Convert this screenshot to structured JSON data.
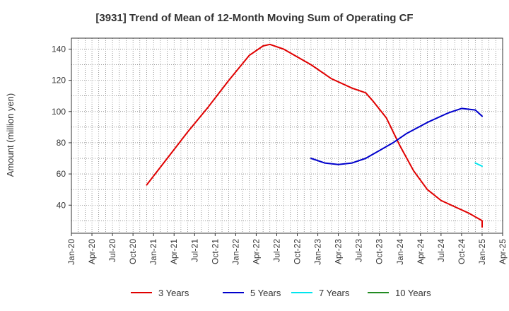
{
  "chart_data": {
    "type": "line",
    "title": "[3931]  Trend of Mean of 12-Month Moving Sum of Operating CF",
    "xlabel": "",
    "ylabel": "Amount (million yen)",
    "x_ticks": [
      "Jan-20",
      "Apr-20",
      "Jul-20",
      "Oct-20",
      "Jan-21",
      "Apr-21",
      "Jul-21",
      "Oct-21",
      "Jan-22",
      "Apr-22",
      "Jul-22",
      "Oct-22",
      "Jan-23",
      "Apr-23",
      "Jul-23",
      "Oct-23",
      "Jan-24",
      "Apr-24",
      "Jul-24",
      "Oct-24",
      "Jan-25",
      "Apr-25"
    ],
    "x_range": [
      "2020-01",
      "2025-04"
    ],
    "ylim": [
      22,
      147
    ],
    "y_ticks": [
      40,
      60,
      80,
      100,
      120,
      140
    ],
    "grid": true,
    "legend_position": "bottom",
    "colors": {
      "3 Years": "#e00000",
      "5 Years": "#0000cc",
      "7 Years": "#00e5ee",
      "10 Years": "#228b22"
    },
    "series": [
      {
        "name": "3 Years",
        "color": "#e00000",
        "points": [
          [
            "2020-12",
            53
          ],
          [
            "2021-03",
            70
          ],
          [
            "2021-06",
            87
          ],
          [
            "2021-09",
            103
          ],
          [
            "2021-12",
            120
          ],
          [
            "2022-03",
            136
          ],
          [
            "2022-05",
            142
          ],
          [
            "2022-06",
            143
          ],
          [
            "2022-08",
            140
          ],
          [
            "2022-10",
            135
          ],
          [
            "2022-12",
            130
          ],
          [
            "2023-03",
            121
          ],
          [
            "2023-06",
            115
          ],
          [
            "2023-08",
            112
          ],
          [
            "2023-09",
            107
          ],
          [
            "2023-11",
            96
          ],
          [
            "2024-01",
            78
          ],
          [
            "2024-03",
            62
          ],
          [
            "2024-05",
            50
          ],
          [
            "2024-07",
            43
          ],
          [
            "2024-09",
            39
          ],
          [
            "2024-11",
            35
          ],
          [
            "2025-01",
            30
          ],
          [
            "2025-01",
            26
          ]
        ]
      },
      {
        "name": "5 Years",
        "color": "#0000cc",
        "points": [
          [
            "2022-12",
            70
          ],
          [
            "2023-02",
            67
          ],
          [
            "2023-04",
            66
          ],
          [
            "2023-06",
            67
          ],
          [
            "2023-08",
            70
          ],
          [
            "2023-10",
            75
          ],
          [
            "2023-12",
            80
          ],
          [
            "2024-02",
            86
          ],
          [
            "2024-05",
            93
          ],
          [
            "2024-08",
            99
          ],
          [
            "2024-10",
            102
          ],
          [
            "2024-12",
            101
          ],
          [
            "2025-01",
            97
          ]
        ]
      },
      {
        "name": "7 Years",
        "color": "#00e5ee",
        "points": [
          [
            "2024-12",
            67
          ],
          [
            "2025-01",
            65
          ]
        ]
      },
      {
        "name": "10 Years",
        "color": "#228b22",
        "points": []
      }
    ]
  }
}
